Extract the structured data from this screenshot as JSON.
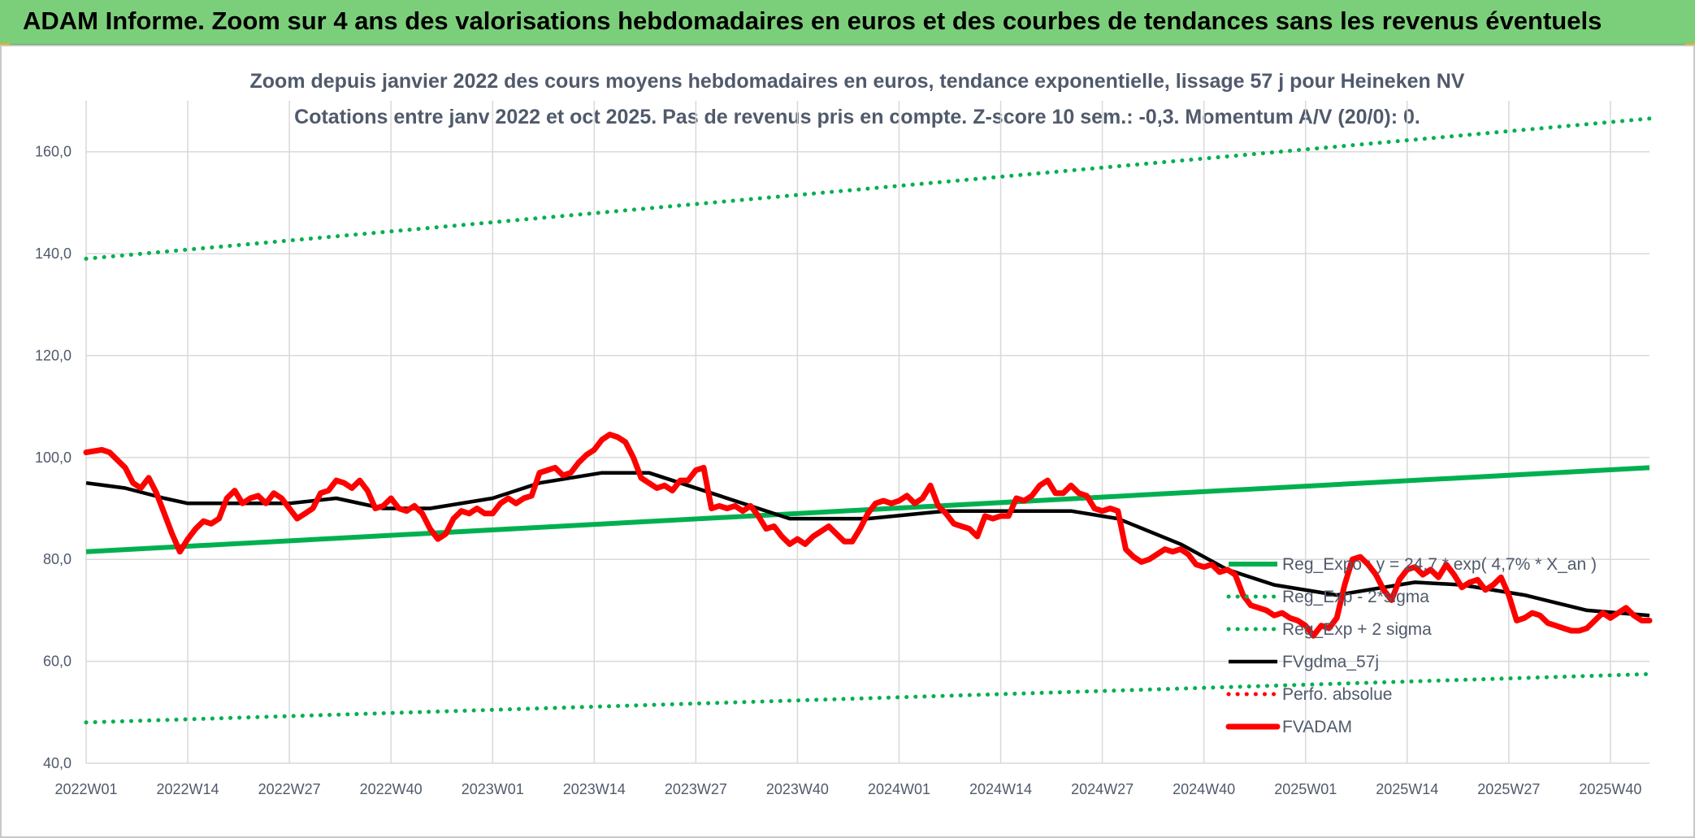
{
  "banner": {
    "title": "ADAM Informe. Zoom sur 4 ans des valorisations hebdomadaires en euros et des courbes de tendances sans les revenus éventuels"
  },
  "colors": {
    "banner_bg": "#7ccf7a",
    "reg": "#00b050",
    "avg": "#000000",
    "fv": "#ff0000",
    "perf": "#ff0000"
  },
  "chart_data": {
    "type": "line",
    "title": "Zoom depuis janvier 2022 des cours moyens hebdomadaires en euros, tendance exponentielle, lissage 57 j pour Heineken NV",
    "subtitle": "Cotations entre janv 2022 et oct 2025. Pas de revenus pris en compte. Z-score 10 sem.: -0,3. Momentum A/V (20/0): 0.",
    "ylim": [
      40,
      170
    ],
    "yticks": [
      "40,0",
      "60,0",
      "80,0",
      "100,0",
      "120,0",
      "140,0",
      "160,0"
    ],
    "xticks": [
      "2022W01",
      "2022W14",
      "2022W27",
      "2022W40",
      "2023W01",
      "2023W14",
      "2023W27",
      "2023W40",
      "2024W01",
      "2024W14",
      "2024W27",
      "2024W40",
      "2025W01",
      "2025W14",
      "2025W27",
      "2025W40"
    ],
    "x_range_weeks": [
      0,
      200
    ],
    "legend_position": "right",
    "series": [
      {
        "name": "Reg_Expo : y = 24,7 * exp( 4,7% *  X_an )",
        "style": "solid",
        "color": "#00b050",
        "values": [
          [
            0,
            81.5
          ],
          [
            200,
            98.0
          ]
        ]
      },
      {
        "name": "Reg_Exp - 2*sigma",
        "style": "dotted",
        "color": "#00b050",
        "values": [
          [
            0,
            48.0
          ],
          [
            200,
            57.5
          ]
        ]
      },
      {
        "name": "Reg_Exp + 2 sigma",
        "style": "dotted",
        "color": "#00b050",
        "values": [
          [
            0,
            139.0
          ],
          [
            200,
            166.5
          ]
        ]
      },
      {
        "name": "FVgdma_57j",
        "style": "solid",
        "color": "#000000",
        "values": [
          [
            0,
            95
          ],
          [
            5,
            94
          ],
          [
            10,
            92
          ],
          [
            13,
            91
          ],
          [
            18,
            91
          ],
          [
            26,
            91
          ],
          [
            32,
            92
          ],
          [
            38,
            90
          ],
          [
            44,
            90
          ],
          [
            52,
            92
          ],
          [
            58,
            95
          ],
          [
            66,
            97
          ],
          [
            72,
            97
          ],
          [
            80,
            93
          ],
          [
            90,
            88
          ],
          [
            100,
            88
          ],
          [
            110,
            89.5
          ],
          [
            118,
            89.5
          ],
          [
            126,
            89.5
          ],
          [
            132,
            88
          ],
          [
            140,
            83
          ],
          [
            146,
            78
          ],
          [
            152,
            75
          ],
          [
            160,
            73
          ],
          [
            170,
            75.5
          ],
          [
            176,
            75
          ],
          [
            184,
            73
          ],
          [
            192,
            70
          ],
          [
            200,
            69
          ]
        ]
      },
      {
        "name": "Perfo. absolue",
        "style": "dotted",
        "color": "#ff0000",
        "values": []
      },
      {
        "name": "FVADAM",
        "style": "solid",
        "color": "#ff0000",
        "values": [
          [
            0,
            101
          ],
          [
            2,
            101.5
          ],
          [
            3,
            101
          ],
          [
            5,
            98
          ],
          [
            6,
            95
          ],
          [
            7,
            94
          ],
          [
            8,
            96
          ],
          [
            9,
            93
          ],
          [
            10,
            89
          ],
          [
            11,
            85
          ],
          [
            12,
            81.5
          ],
          [
            13,
            84
          ],
          [
            14,
            86
          ],
          [
            15,
            87.5
          ],
          [
            16,
            87
          ],
          [
            17,
            88
          ],
          [
            18,
            92
          ],
          [
            19,
            93.5
          ],
          [
            20,
            91
          ],
          [
            21,
            92
          ],
          [
            22,
            92.5
          ],
          [
            23,
            91
          ],
          [
            24,
            93
          ],
          [
            25,
            92
          ],
          [
            26,
            90
          ],
          [
            27,
            88
          ],
          [
            28,
            89
          ],
          [
            29,
            90
          ],
          [
            30,
            93
          ],
          [
            31,
            93.5
          ],
          [
            32,
            95.5
          ],
          [
            33,
            95
          ],
          [
            34,
            94
          ],
          [
            35,
            95.5
          ],
          [
            36,
            93.5
          ],
          [
            37,
            90
          ],
          [
            38,
            90.5
          ],
          [
            39,
            92
          ],
          [
            40,
            90
          ],
          [
            41,
            89.5
          ],
          [
            42,
            90.5
          ],
          [
            43,
            89
          ],
          [
            44,
            86
          ],
          [
            45,
            84
          ],
          [
            46,
            85
          ],
          [
            47,
            88
          ],
          [
            48,
            89.5
          ],
          [
            49,
            89
          ],
          [
            50,
            90
          ],
          [
            51,
            89
          ],
          [
            52,
            89
          ],
          [
            53,
            91
          ],
          [
            54,
            92
          ],
          [
            55,
            91
          ],
          [
            56,
            92
          ],
          [
            57,
            92.5
          ],
          [
            58,
            97
          ],
          [
            59,
            97.5
          ],
          [
            60,
            98
          ],
          [
            61,
            96.5
          ],
          [
            62,
            97
          ],
          [
            63,
            99
          ],
          [
            64,
            100.5
          ],
          [
            65,
            101.5
          ],
          [
            66,
            103.5
          ],
          [
            67,
            104.5
          ],
          [
            68,
            104
          ],
          [
            69,
            103
          ],
          [
            70,
            100
          ],
          [
            71,
            96
          ],
          [
            72,
            95
          ],
          [
            73,
            94
          ],
          [
            74,
            94.5
          ],
          [
            75,
            93.5
          ],
          [
            76,
            95.5
          ],
          [
            77,
            95.5
          ],
          [
            78,
            97.5
          ],
          [
            79,
            98
          ],
          [
            80,
            90
          ],
          [
            81,
            90.5
          ],
          [
            82,
            90
          ],
          [
            83,
            90.5
          ],
          [
            84,
            89.5
          ],
          [
            85,
            90.5
          ],
          [
            86,
            88.5
          ],
          [
            87,
            86
          ],
          [
            88,
            86.5
          ],
          [
            89,
            84.5
          ],
          [
            90,
            83
          ],
          [
            91,
            84
          ],
          [
            92,
            83
          ],
          [
            93,
            84.5
          ],
          [
            94,
            85.5
          ],
          [
            95,
            86.5
          ],
          [
            96,
            85
          ],
          [
            97,
            83.5
          ],
          [
            98,
            83.5
          ],
          [
            99,
            86
          ],
          [
            100,
            89
          ],
          [
            101,
            91
          ],
          [
            102,
            91.5
          ],
          [
            103,
            91
          ],
          [
            104,
            91.5
          ],
          [
            105,
            92.5
          ],
          [
            106,
            91
          ],
          [
            107,
            92
          ],
          [
            108,
            94.5
          ],
          [
            109,
            90.5
          ],
          [
            110,
            89
          ],
          [
            111,
            87
          ],
          [
            112,
            86.5
          ],
          [
            113,
            86
          ],
          [
            114,
            84.5
          ],
          [
            115,
            88.5
          ],
          [
            116,
            88
          ],
          [
            117,
            88.5
          ],
          [
            118,
            88.5
          ],
          [
            119,
            92
          ],
          [
            120,
            91.5
          ],
          [
            121,
            92.5
          ],
          [
            122,
            94.5
          ],
          [
            123,
            95.5
          ],
          [
            124,
            93
          ],
          [
            125,
            93
          ],
          [
            126,
            94.5
          ],
          [
            127,
            93
          ],
          [
            128,
            92.5
          ],
          [
            129,
            90
          ],
          [
            130,
            89.5
          ],
          [
            131,
            90
          ],
          [
            132,
            89.5
          ],
          [
            133,
            82
          ],
          [
            134,
            80.5
          ],
          [
            135,
            79.5
          ],
          [
            136,
            80
          ],
          [
            137,
            81
          ],
          [
            138,
            82
          ],
          [
            139,
            81.5
          ],
          [
            140,
            82
          ],
          [
            141,
            81
          ],
          [
            142,
            79
          ],
          [
            143,
            78.5
          ],
          [
            144,
            79
          ],
          [
            145,
            77.5
          ],
          [
            146,
            78
          ],
          [
            147,
            77
          ],
          [
            148,
            73
          ],
          [
            149,
            71
          ],
          [
            150,
            70.5
          ],
          [
            151,
            70
          ],
          [
            152,
            69
          ],
          [
            153,
            69.5
          ],
          [
            154,
            68.5
          ],
          [
            155,
            68
          ],
          [
            156,
            67
          ],
          [
            157,
            65
          ],
          [
            158,
            67
          ],
          [
            159,
            66.5
          ],
          [
            160,
            68.5
          ],
          [
            161,
            75
          ],
          [
            162,
            80
          ],
          [
            163,
            80.5
          ],
          [
            164,
            79
          ],
          [
            165,
            77
          ],
          [
            166,
            74
          ],
          [
            167,
            72
          ],
          [
            168,
            76
          ],
          [
            169,
            78
          ],
          [
            170,
            78.5
          ],
          [
            171,
            77
          ],
          [
            172,
            78
          ],
          [
            173,
            76.5
          ],
          [
            174,
            79
          ],
          [
            175,
            77
          ],
          [
            176,
            74.5
          ],
          [
            177,
            75.5
          ],
          [
            178,
            76
          ],
          [
            179,
            74
          ],
          [
            180,
            75
          ],
          [
            181,
            76.5
          ],
          [
            182,
            73
          ],
          [
            183,
            68
          ],
          [
            184,
            68.5
          ],
          [
            185,
            69.5
          ],
          [
            186,
            69
          ],
          [
            187,
            67.5
          ],
          [
            188,
            67
          ],
          [
            189,
            66.5
          ],
          [
            190,
            66
          ],
          [
            191,
            66
          ],
          [
            192,
            66.5
          ],
          [
            193,
            68
          ],
          [
            194,
            69.5
          ],
          [
            195,
            68.5
          ],
          [
            196,
            69.5
          ],
          [
            197,
            70.5
          ],
          [
            198,
            69
          ],
          [
            199,
            68
          ],
          [
            200,
            68
          ]
        ]
      }
    ]
  }
}
